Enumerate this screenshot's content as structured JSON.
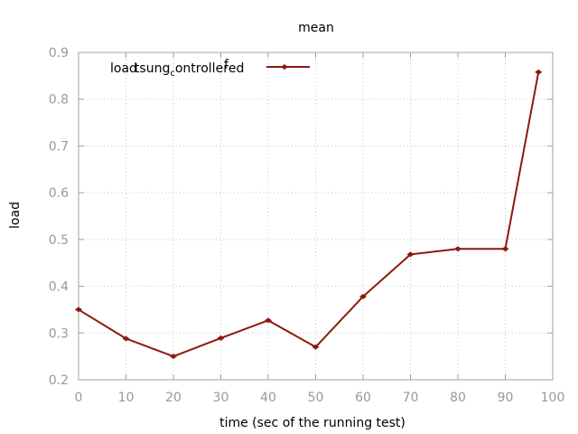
{
  "chart_data": {
    "type": "line",
    "title": "mean",
    "xlabel": "time (sec of the running test)",
    "ylabel": "load",
    "xlim": [
      0,
      100
    ],
    "ylim": [
      0.2,
      0.9
    ],
    "x_ticks": [
      0,
      10,
      20,
      30,
      40,
      50,
      60,
      70,
      80,
      90,
      100
    ],
    "y_ticks": [
      0.2,
      0.3,
      0.4,
      0.5,
      0.6,
      0.7,
      0.8,
      0.9
    ],
    "grid": true,
    "legend_position": "top-left",
    "line_color": "#8b1a10",
    "series": [
      {
        "name_parts": [
          "load",
          "tsung",
          "c",
          "ontrolle",
          "r",
          "f",
          "ed"
        ],
        "x": [
          0,
          10,
          20,
          30,
          40,
          50,
          60,
          70,
          80,
          90,
          97
        ],
        "y": [
          0.35,
          0.288,
          0.25,
          0.289,
          0.327,
          0.27,
          0.378,
          0.468,
          0.48,
          0.48,
          0.858
        ]
      }
    ]
  }
}
